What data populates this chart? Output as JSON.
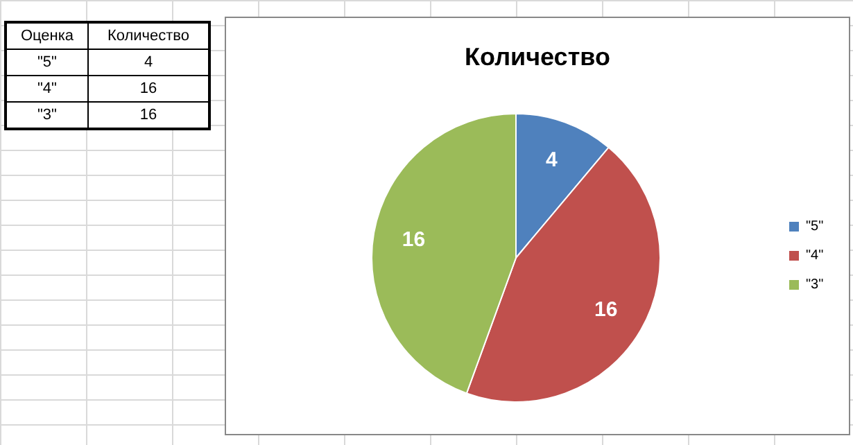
{
  "chart_data": [
    {
      "type": "other",
      "annotations": [
        "Оценка",
        "Количество",
        "\"5\"",
        "4",
        "\"4\"",
        "16",
        "\"3\"",
        "16"
      ]
    },
    {
      "type": "pie",
      "title": "Количество",
      "categories": [
        "\"5\"",
        "\"4\"",
        "\"3\""
      ],
      "values": [
        4,
        16,
        16
      ],
      "colors": [
        "#4f81bd",
        "#c0504d",
        "#9bbb59"
      ],
      "data_labels": true,
      "legend": "right"
    }
  ]
}
